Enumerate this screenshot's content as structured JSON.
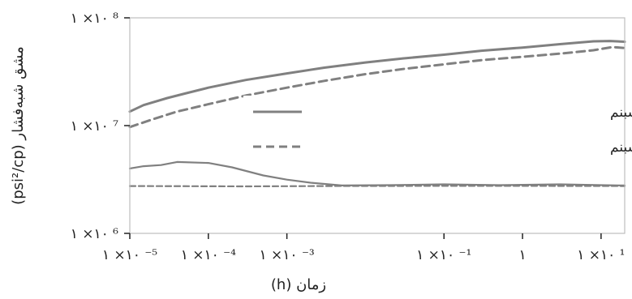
{
  "chart_data": {
    "type": "line",
    "xlabel": "زمان (h)",
    "ylabel": "مشق شبه‌فشار (psi²/cp)",
    "x_scale": "log",
    "y_scale": "log",
    "xlim": [
      1e-05,
      20
    ],
    "ylim": [
      1000000,
      100000000
    ],
    "x_ticks": [
      {
        "value": 1e-05,
        "label": "۱ ×۱۰ ⁻⁵"
      },
      {
        "value": 0.0001,
        "label": "۱ ×۱۰ ⁻⁴"
      },
      {
        "value": 0.001,
        "label": "۱ ×۱۰ ⁻³"
      },
      {
        "value": 0.1,
        "label": "۱ ×۱۰ ⁻¹"
      },
      {
        "value": 1,
        "label": "۱"
      },
      {
        "value": 10,
        "label": "۱ ×۱۰ ¹"
      }
    ],
    "y_ticks": [
      {
        "value": 1000000,
        "label": "۱ ×۱۰ ⁶"
      },
      {
        "value": 10000000,
        "label": "۱ ×۱۰ ⁷"
      },
      {
        "value": 100000000,
        "label": "۱ ×۱۰ ⁸"
      }
    ],
    "grid": false,
    "legend_position": "center-right",
    "series": [
      {
        "name": "رژیم جریانی غیردارسی پایین‌تر از فشار شبنم",
        "style": "solid",
        "color": "#808080",
        "points": [
          [
            1e-05,
            13500000
          ],
          [
            1.5e-05,
            15500000
          ],
          [
            3e-05,
            18000000
          ],
          [
            5e-05,
            19800000
          ],
          [
            0.0001,
            22500000
          ],
          [
            0.0003,
            26500000
          ],
          [
            0.001,
            30500000
          ],
          [
            0.003,
            34500000
          ],
          [
            0.01,
            38500000
          ],
          [
            0.03,
            42000000
          ],
          [
            0.1,
            45500000
          ],
          [
            0.3,
            49500000
          ],
          [
            1,
            53000000
          ],
          [
            3,
            57000000
          ],
          [
            8,
            60500000
          ],
          [
            13,
            61000000
          ],
          [
            20,
            60000000
          ]
        ]
      },
      {
        "name": "رژیم جریانی غیردارسی بالاتر از فشار شبنم",
        "style": "dashed",
        "color": "#808080",
        "points": [
          [
            1e-05,
            9700000
          ],
          [
            2e-05,
            11500000
          ],
          [
            4e-05,
            13500000
          ],
          [
            0.0001,
            15800000
          ],
          [
            0.0003,
            19000000
          ],
          [
            0.001,
            22500000
          ],
          [
            0.003,
            26000000
          ],
          [
            0.01,
            30000000
          ],
          [
            0.03,
            33500000
          ],
          [
            0.1,
            37000000
          ],
          [
            0.3,
            40500000
          ],
          [
            1,
            43500000
          ],
          [
            3,
            46500000
          ],
          [
            8,
            50000000
          ],
          [
            14,
            53500000
          ],
          [
            20,
            52500000
          ]
        ]
      },
      {
        "name": "",
        "style": "solid",
        "color": "#808080",
        "points": [
          [
            1e-05,
            4000000
          ],
          [
            1.5e-05,
            4200000
          ],
          [
            2.5e-05,
            4300000
          ],
          [
            4e-05,
            4600000
          ],
          [
            0.0001,
            4500000
          ],
          [
            0.0002,
            4100000
          ],
          [
            0.0005,
            3450000
          ],
          [
            0.001,
            3150000
          ],
          [
            0.002,
            2950000
          ],
          [
            0.005,
            2780000
          ],
          [
            0.02,
            2800000
          ],
          [
            0.1,
            2850000
          ],
          [
            0.5,
            2800000
          ],
          [
            3,
            2850000
          ],
          [
            10,
            2800000
          ],
          [
            20,
            2780000
          ]
        ]
      },
      {
        "name": "",
        "style": "dashed",
        "color": "#808080",
        "points": [
          [
            1e-05,
            2750000
          ],
          [
            0.0003,
            2730000
          ],
          [
            0.003,
            2750000
          ],
          [
            0.1,
            2760000
          ],
          [
            1,
            2760000
          ],
          [
            20,
            2750000
          ]
        ]
      }
    ]
  }
}
